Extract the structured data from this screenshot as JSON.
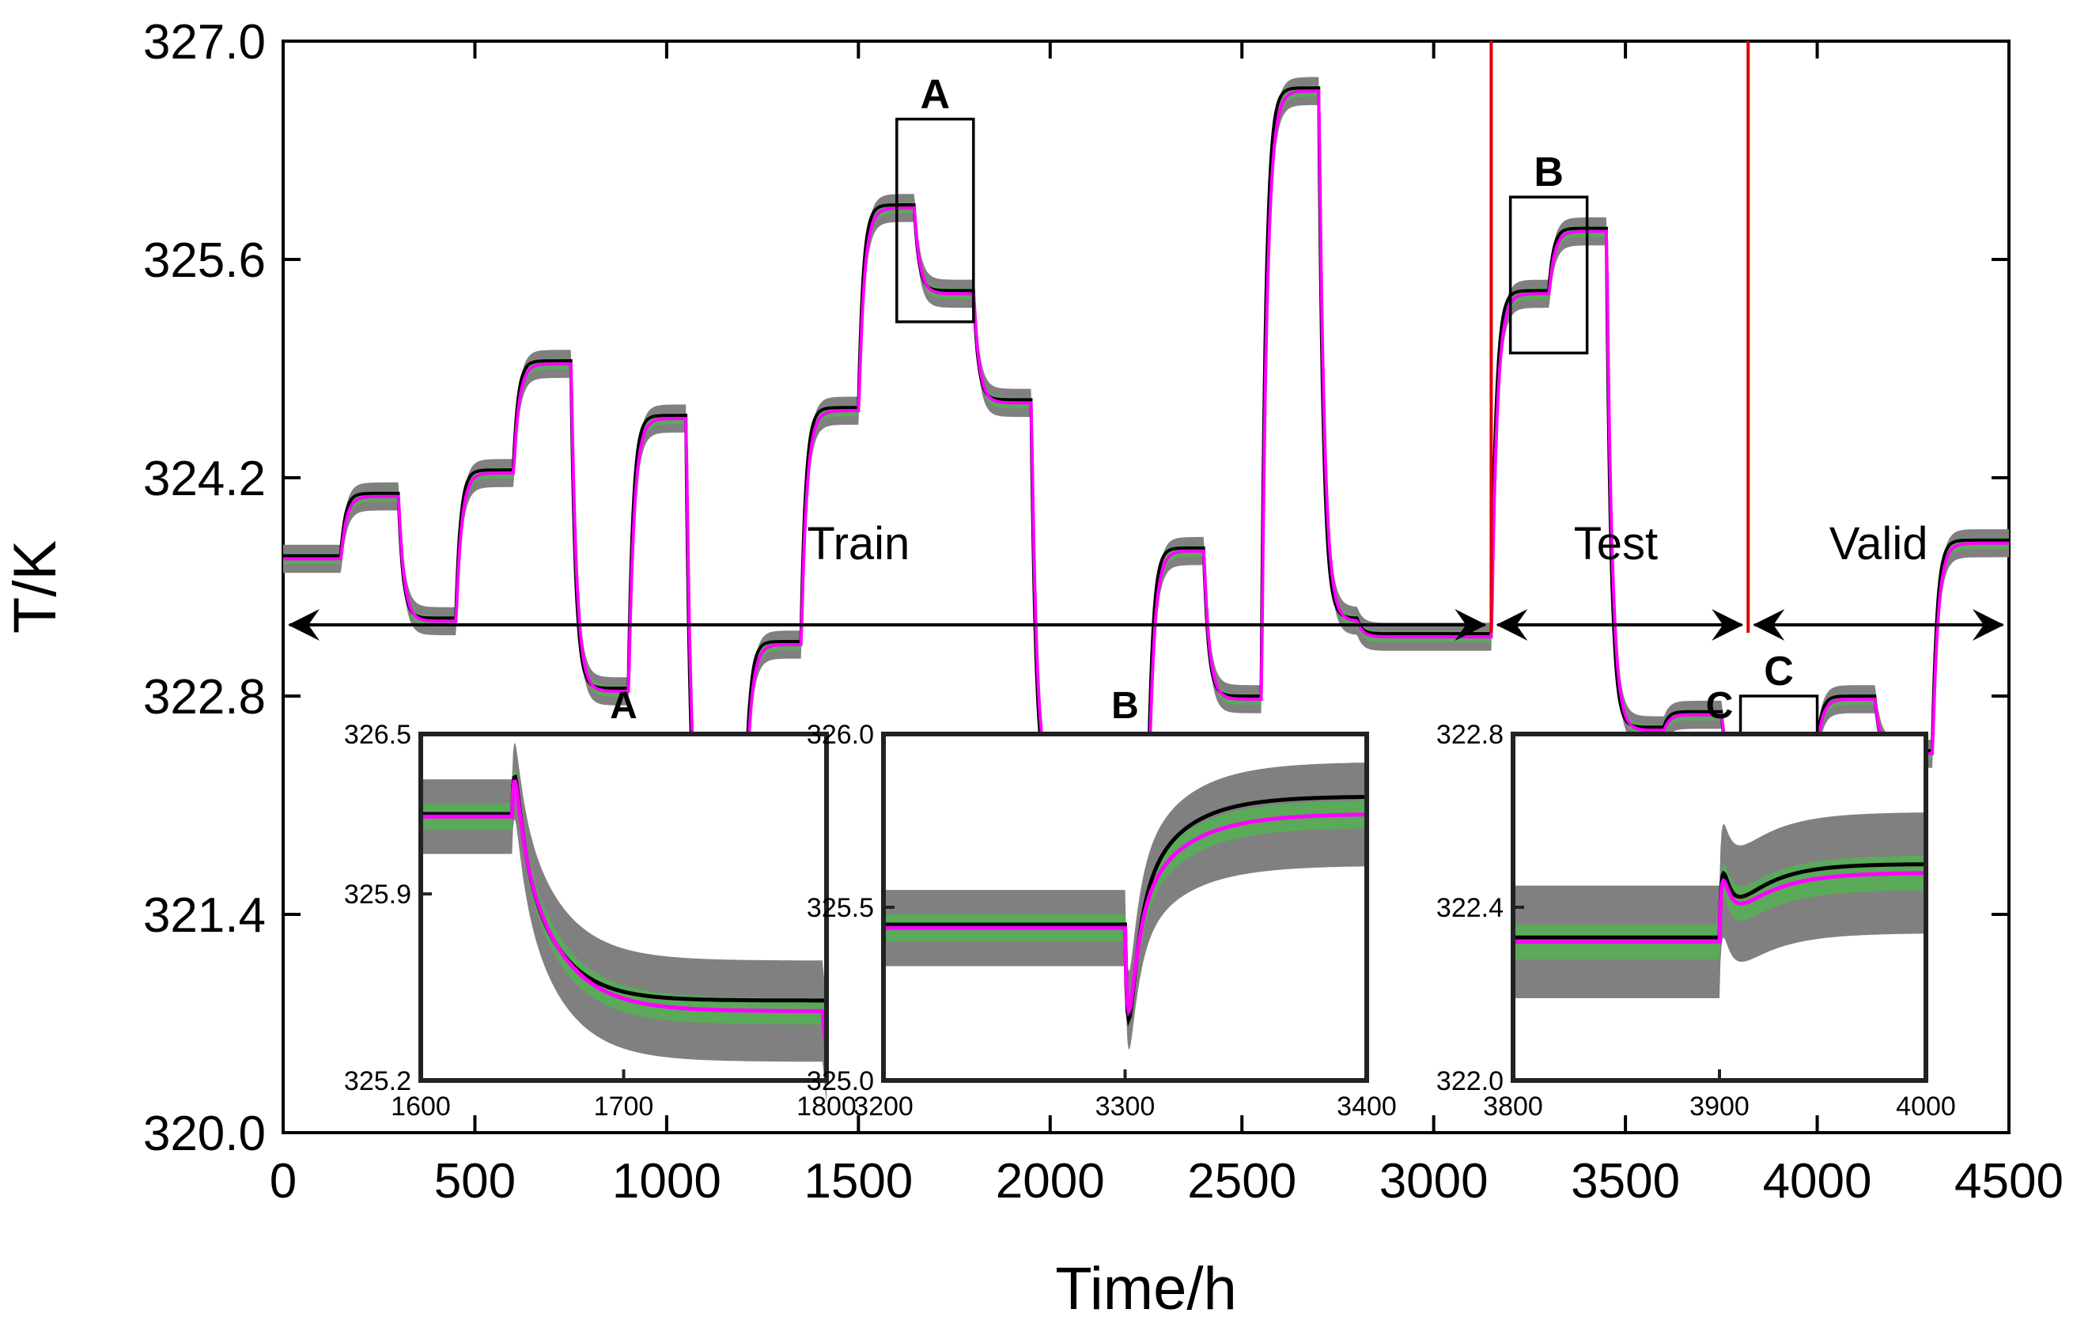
{
  "chart_data": {
    "type": "line",
    "main": {
      "xlabel": "Time/h",
      "ylabel": "T/K",
      "xlim": [
        0,
        4500
      ],
      "ylim": [
        320.0,
        327.0
      ],
      "x_ticks": [
        0,
        500,
        1000,
        1500,
        2000,
        2500,
        3000,
        3500,
        4000,
        4500
      ],
      "y_ticks": [
        320.0,
        321.4,
        322.8,
        324.2,
        325.6,
        327.0
      ],
      "y_tick_labels": [
        "320.0",
        "321.4",
        "322.8",
        "324.2",
        "325.6",
        "327.0"
      ],
      "series": [
        {
          "role": "prediction-band",
          "color": "#808080",
          "half_width": 0.09
        },
        {
          "role": "inner-band",
          "color": "#5aaa5a",
          "half_width": 0.035
        },
        {
          "role": "actual",
          "color": "#000000"
        },
        {
          "role": "prediction",
          "color": "#ff00ff"
        }
      ],
      "steps": [
        {
          "x": 0,
          "y": 323.7
        },
        {
          "x": 150,
          "y": 324.1
        },
        {
          "x": 300,
          "y": 323.3
        },
        {
          "x": 450,
          "y": 324.25
        },
        {
          "x": 600,
          "y": 324.95
        },
        {
          "x": 750,
          "y": 322.85
        },
        {
          "x": 900,
          "y": 324.6
        },
        {
          "x": 1050,
          "y": 321.6
        },
        {
          "x": 1200,
          "y": 323.15
        },
        {
          "x": 1350,
          "y": 324.65
        },
        {
          "x": 1500,
          "y": 325.95
        },
        {
          "x": 1645,
          "y": 325.4
        },
        {
          "x": 1800,
          "y": 324.7
        },
        {
          "x": 1950,
          "y": 322.2
        },
        {
          "x": 2100,
          "y": 321.35
        },
        {
          "x": 2250,
          "y": 323.75
        },
        {
          "x": 2400,
          "y": 322.8
        },
        {
          "x": 2550,
          "y": 326.7
        },
        {
          "x": 2700,
          "y": 323.3
        },
        {
          "x": 2800,
          "y": 323.2
        },
        {
          "x": 3150,
          "y": 325.4
        },
        {
          "x": 3300,
          "y": 325.8
        },
        {
          "x": 3450,
          "y": 322.6
        },
        {
          "x": 3600,
          "y": 322.7
        },
        {
          "x": 3750,
          "y": 322.3
        },
        {
          "x": 3900,
          "y": 322.5
        },
        {
          "x": 4000,
          "y": 322.8
        },
        {
          "x": 4150,
          "y": 322.45
        },
        {
          "x": 4300,
          "y": 323.8
        },
        {
          "x": 4500,
          "y": 323.8
        }
      ],
      "split_lines": [
        3150,
        3820
      ],
      "regions": [
        {
          "label": "Train",
          "x_start": 0,
          "x_end": 3150,
          "label_x": 1500,
          "label_y": 321.4
        },
        {
          "label": "Test",
          "x_start": 3150,
          "x_end": 3820,
          "label_x": 3475,
          "label_y": 321.4
        },
        {
          "label": "Valid",
          "x_start": 3820,
          "x_end": 4500,
          "label_x": 4160,
          "label_y": 321.4
        }
      ],
      "zoom_boxes": [
        {
          "label": "A",
          "x0": 1600,
          "x1": 1800,
          "y0": 325.2,
          "y1": 326.5
        },
        {
          "label": "B",
          "x0": 3200,
          "x1": 3400,
          "y0": 325.0,
          "y1": 326.0
        },
        {
          "label": "C",
          "x0": 3800,
          "x1": 4000,
          "y0": 322.0,
          "y1": 322.8
        }
      ]
    },
    "insets": [
      {
        "title": "A",
        "xlim": [
          1600,
          1800
        ],
        "ylim": [
          325.2,
          326.5
        ],
        "x_ticks": [
          1600,
          1700,
          1800
        ],
        "y_ticks": [
          325.2,
          325.9,
          326.5
        ],
        "y_tick_labels": [
          "325.2",
          "325.9",
          "326.5"
        ],
        "step_x": 1645,
        "before": 326.2,
        "after_actual": 325.5,
        "after_pred": 325.46,
        "band_gray": 0.14,
        "band_gray_after": 0.19,
        "band_green": 0.05,
        "spike": 0.18,
        "spike_dir": 1,
        "end_dip": true
      },
      {
        "title": "B",
        "xlim": [
          3200,
          3400
        ],
        "ylim": [
          325.0,
          326.0
        ],
        "x_ticks": [
          3200,
          3300,
          3400
        ],
        "y_ticks": [
          325.0,
          325.5,
          326.0
        ],
        "y_tick_labels": [
          "325.0",
          "325.5",
          "326.0"
        ],
        "step_x": 3300,
        "before": 325.45,
        "after_actual": 325.82,
        "after_pred": 325.77,
        "band_gray": 0.11,
        "band_gray_after": 0.15,
        "band_green": 0.04,
        "spike": 0.28,
        "spike_dir": -1,
        "end_dip": false
      },
      {
        "title": "C",
        "xlim": [
          3800,
          4000
        ],
        "ylim": [
          322.0,
          322.8
        ],
        "x_ticks": [
          3800,
          3900,
          4000
        ],
        "y_ticks": [
          322.0,
          322.4,
          322.8
        ],
        "y_tick_labels": [
          "322.0",
          "322.4",
          "322.8"
        ],
        "step_x": 3900,
        "before": 322.33,
        "after_actual": 322.5,
        "after_pred": 322.48,
        "band_gray": 0.13,
        "band_gray_after": 0.14,
        "band_green": 0.04,
        "spike": 0.12,
        "spike_dir": 1,
        "end_dip": false
      }
    ]
  }
}
